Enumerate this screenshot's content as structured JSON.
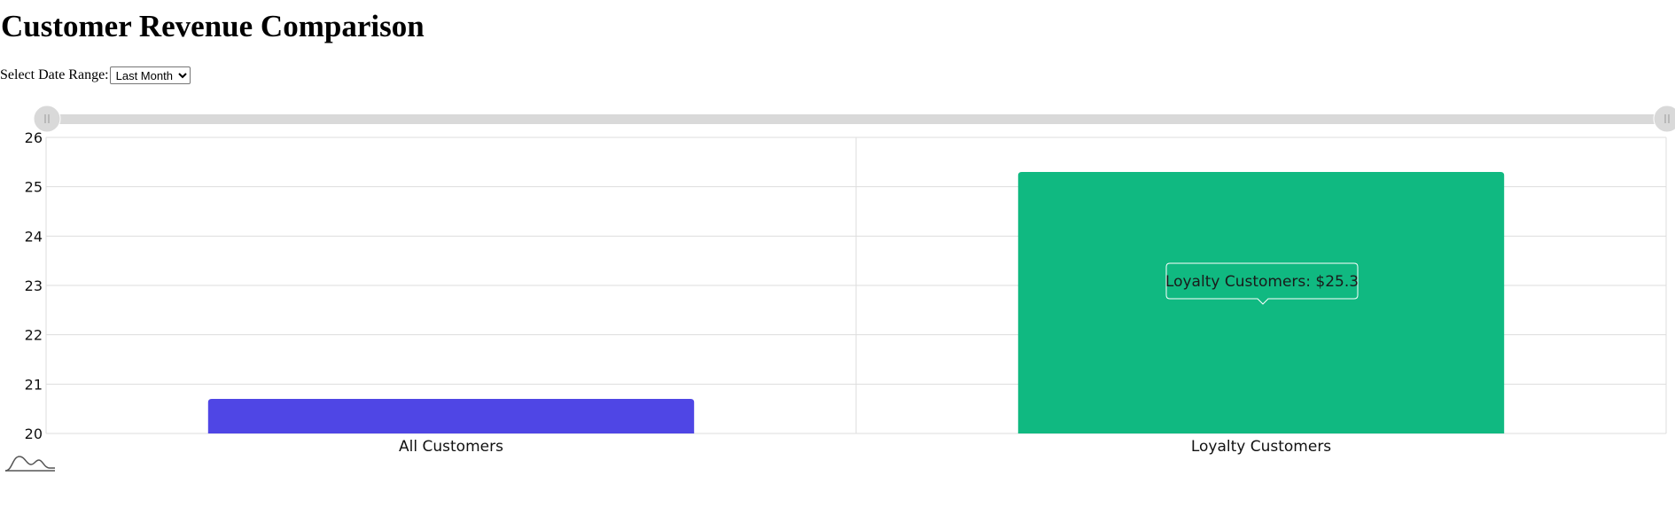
{
  "page": {
    "title": "Customer Revenue Comparison",
    "date_range_label": "Select Date Range:",
    "date_range_selected": "Last Month",
    "date_range_options": [
      "Last Month"
    ]
  },
  "tooltip": {
    "text": "Loyalty Customers: $25.3"
  },
  "colors": {
    "all_customers": "#4f46e5",
    "loyalty_customers": "#10b981",
    "grid": "#dddddd",
    "scrollbar": "#d9d9d9"
  },
  "chart_data": {
    "type": "bar",
    "categories": [
      "All Customers",
      "Loyalty Customers"
    ],
    "values": [
      20.7,
      25.3
    ],
    "ylim": [
      20,
      26
    ],
    "yticks": [
      "20",
      "21",
      "22",
      "23",
      "24",
      "25",
      "26"
    ],
    "grid": true,
    "title": "",
    "xlabel": "",
    "ylabel": ""
  }
}
